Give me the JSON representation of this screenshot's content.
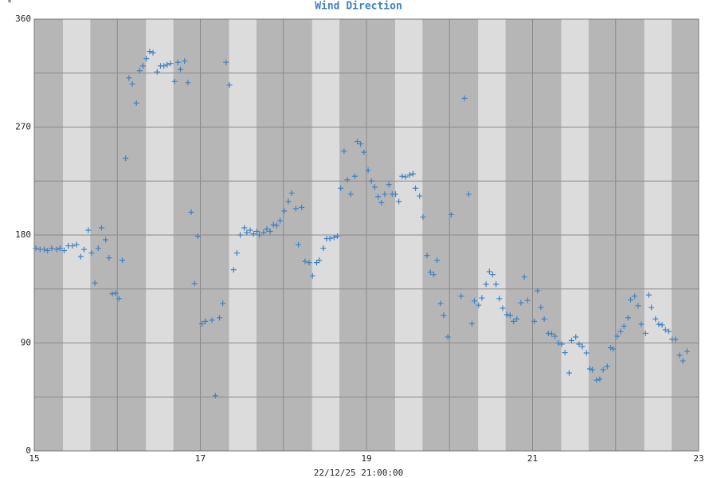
{
  "chart_data": {
    "type": "scatter",
    "title": "Wind Direction",
    "y_unit": "°",
    "x_label": "22/12/25 21:00:00",
    "color": "#3f82c0",
    "xlim": [
      15,
      23
    ],
    "xticks": [
      15,
      17,
      19,
      21,
      23
    ],
    "x_minor_ticks": [
      16,
      18,
      20,
      22
    ],
    "ylim": [
      0,
      360
    ],
    "yticks": [
      0,
      90,
      180,
      270,
      360
    ],
    "y_minor_ticks": [
      45,
      135,
      225,
      315
    ],
    "grid": true,
    "x": [
      15.02,
      15.07,
      15.12,
      15.16,
      15.21,
      15.27,
      15.31,
      15.36,
      15.41,
      15.46,
      15.51,
      15.56,
      15.6,
      15.65,
      15.69,
      15.73,
      15.77,
      15.81,
      15.86,
      15.9,
      15.94,
      15.98,
      16.02,
      16.06,
      16.1,
      16.14,
      16.18,
      16.23,
      16.27,
      16.31,
      16.35,
      16.39,
      16.43,
      16.48,
      16.52,
      16.56,
      16.6,
      16.64,
      16.69,
      16.73,
      16.76,
      16.81,
      16.85,
      16.89,
      16.93,
      16.97,
      17.02,
      17.06,
      17.14,
      17.18,
      17.23,
      17.27,
      17.31,
      17.35,
      17.4,
      17.44,
      17.48,
      17.53,
      17.56,
      17.6,
      17.64,
      17.68,
      17.71,
      17.76,
      17.8,
      17.84,
      17.88,
      17.92,
      17.96,
      18.01,
      18.06,
      18.1,
      18.15,
      18.18,
      18.22,
      18.26,
      18.31,
      18.35,
      18.4,
      18.43,
      18.48,
      18.52,
      18.56,
      18.61,
      18.65,
      18.69,
      18.73,
      18.77,
      18.81,
      18.86,
      18.89,
      18.93,
      18.97,
      19.02,
      19.06,
      19.1,
      19.14,
      19.18,
      19.22,
      19.27,
      19.31,
      19.35,
      19.39,
      19.43,
      19.47,
      19.52,
      19.56,
      19.59,
      19.64,
      19.68,
      19.73,
      19.77,
      19.81,
      19.85,
      19.89,
      19.93,
      19.98,
      20.02,
      20.14,
      20.18,
      20.23,
      20.27,
      20.3,
      20.35,
      20.39,
      20.44,
      20.48,
      20.52,
      20.56,
      20.6,
      20.64,
      20.69,
      20.73,
      20.77,
      20.81,
      20.86,
      20.9,
      20.94,
      21.02,
      21.06,
      21.1,
      21.14,
      21.19,
      21.23,
      21.27,
      21.31,
      21.35,
      21.39,
      21.44,
      21.47,
      21.52,
      21.56,
      21.6,
      21.65,
      21.69,
      21.72,
      21.77,
      21.81,
      21.85,
      21.9,
      21.94,
      21.97,
      22.02,
      22.06,
      22.1,
      22.15,
      22.18,
      22.23,
      22.27,
      22.31,
      22.36,
      22.4,
      22.43,
      22.48,
      22.52,
      22.56,
      22.6,
      22.64,
      22.68,
      22.72,
      22.77,
      22.81,
      22.86
    ],
    "values": [
      169,
      168,
      168,
      167,
      169,
      168,
      169,
      167,
      171,
      171,
      172,
      162,
      168,
      184,
      165,
      140,
      169,
      186,
      176,
      161,
      131,
      131.5,
      127,
      159,
      244,
      311,
      306,
      290,
      317,
      321,
      327,
      333,
      332,
      316,
      321,
      321,
      322,
      323,
      308,
      324,
      318,
      325,
      307,
      199,
      139.5,
      179,
      106,
      108,
      109,
      46,
      111,
      123,
      324,
      305,
      151,
      165,
      180,
      186,
      182,
      184,
      181,
      183,
      180,
      182,
      185,
      183,
      188.6,
      188,
      192,
      200,
      208,
      215,
      202,
      172,
      203,
      158,
      157,
      146,
      157,
      159,
      169,
      177,
      177,
      178,
      179,
      219,
      250,
      226,
      214,
      229,
      258,
      256,
      249,
      234,
      225,
      220,
      212,
      207,
      214,
      222,
      214,
      214,
      208,
      229,
      228.5,
      230,
      231,
      219,
      212.5,
      195,
      163,
      149,
      147,
      159,
      123,
      113,
      95,
      197,
      129,
      294,
      214,
      106,
      125,
      121.5,
      127.5,
      139,
      149.5,
      147,
      139,
      127,
      119,
      113.6,
      113,
      108,
      110,
      123.5,
      145,
      125.5,
      108,
      133.5,
      119.6,
      110,
      98,
      97.6,
      95.6,
      90,
      89,
      82,
      65,
      92,
      95,
      89,
      87,
      81.7,
      68.4,
      67.7,
      59,
      59.8,
      67.7,
      70.4,
      86,
      85,
      95.6,
      99.6,
      104,
      111,
      126,
      129,
      121,
      105.6,
      98,
      130,
      119.6,
      110,
      105.6,
      105,
      101,
      99.6,
      93,
      93,
      79.7,
      75,
      83
    ]
  }
}
